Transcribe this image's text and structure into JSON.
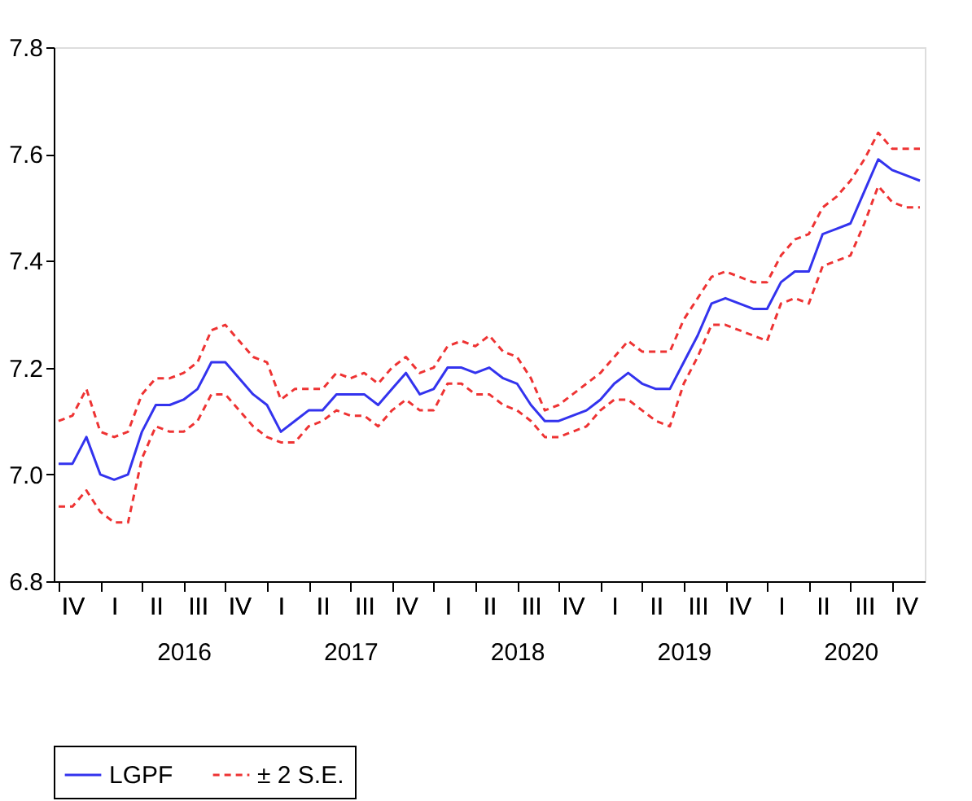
{
  "chart_data": {
    "type": "line",
    "categories": [
      null,
      "IV",
      null,
      null,
      "I",
      null,
      null,
      "II",
      null,
      "2016",
      "III",
      null,
      null,
      "IV",
      null,
      null,
      "I",
      null,
      null,
      "II",
      null,
      "2017",
      "III",
      null,
      null,
      "IV",
      null,
      null,
      "I",
      null,
      null,
      "II",
      null,
      "2018",
      "III",
      null,
      null,
      "IV",
      null,
      null,
      "I",
      null,
      null,
      "II",
      null,
      "2019",
      "III",
      null,
      null,
      "IV",
      null,
      null,
      "I",
      null,
      null,
      "II",
      null,
      "2020",
      "III",
      null,
      null,
      "IV",
      null
    ],
    "series": [
      {
        "name": "LGPF",
        "color": "#3333ee",
        "line_style": "solid",
        "values": [
          7.02,
          7.02,
          7.07,
          7.0,
          6.99,
          7.0,
          7.08,
          7.13,
          7.13,
          7.14,
          7.16,
          7.21,
          7.21,
          7.18,
          7.15,
          7.13,
          7.08,
          7.1,
          7.12,
          7.12,
          7.15,
          7.15,
          7.15,
          7.13,
          7.16,
          7.19,
          7.15,
          7.16,
          7.2,
          7.2,
          7.19,
          7.2,
          7.18,
          7.17,
          7.13,
          7.1,
          7.1,
          7.11,
          7.12,
          7.14,
          7.17,
          7.19,
          7.17,
          7.16,
          7.16,
          7.21,
          7.26,
          7.32,
          7.33,
          7.32,
          7.31,
          7.31,
          7.36,
          7.38,
          7.38,
          7.45,
          7.46,
          7.47,
          7.53,
          7.59,
          7.57,
          7.56,
          7.55
        ]
      },
      {
        "name": "± 2 S.E.",
        "color": "#ee3333",
        "line_style": "dashed",
        "values": [
          7.1,
          7.11,
          7.16,
          7.08,
          7.07,
          7.08,
          7.15,
          7.18,
          7.18,
          7.19,
          7.21,
          7.27,
          7.28,
          7.25,
          7.22,
          7.21,
          7.14,
          7.16,
          7.16,
          7.16,
          7.19,
          7.18,
          7.19,
          7.17,
          7.2,
          7.22,
          7.19,
          7.2,
          7.24,
          7.25,
          7.24,
          7.26,
          7.23,
          7.22,
          7.18,
          7.12,
          7.13,
          7.15,
          7.17,
          7.19,
          7.22,
          7.25,
          7.23,
          7.23,
          7.23,
          7.29,
          7.33,
          7.37,
          7.38,
          7.37,
          7.36,
          7.36,
          7.41,
          7.44,
          7.45,
          7.5,
          7.52,
          7.55,
          7.59,
          7.64,
          7.61,
          7.61,
          7.61
        ]
      },
      {
        "color": "#ee3333",
        "line_style": "dashed",
        "values": [
          6.94,
          6.94,
          6.97,
          6.93,
          6.91,
          6.91,
          7.03,
          7.09,
          7.08,
          7.08,
          7.1,
          7.15,
          7.15,
          7.12,
          7.09,
          7.07,
          7.06,
          7.06,
          7.09,
          7.1,
          7.12,
          7.11,
          7.11,
          7.09,
          7.12,
          7.14,
          7.12,
          7.12,
          7.17,
          7.17,
          7.15,
          7.15,
          7.13,
          7.12,
          7.1,
          7.07,
          7.07,
          7.08,
          7.09,
          7.12,
          7.14,
          7.14,
          7.12,
          7.1,
          7.09,
          7.17,
          7.22,
          7.28,
          7.28,
          7.27,
          7.26,
          7.25,
          7.32,
          7.33,
          7.32,
          7.39,
          7.4,
          7.41,
          7.47,
          7.54,
          7.51,
          7.5,
          7.5
        ]
      }
    ],
    "ylim": [
      6.8,
      7.8
    ],
    "yticks": [
      {
        "value": 6.8,
        "label": "6.8"
      },
      {
        "value": 7.0,
        "label": "7.0"
      },
      {
        "value": 7.2,
        "label": "7.2"
      },
      {
        "value": 7.4,
        "label": "7.4"
      },
      {
        "value": 7.6,
        "label": "7.6"
      },
      {
        "value": 7.8,
        "label": "7.8"
      }
    ],
    "grid": false,
    "legend": "bottom"
  }
}
